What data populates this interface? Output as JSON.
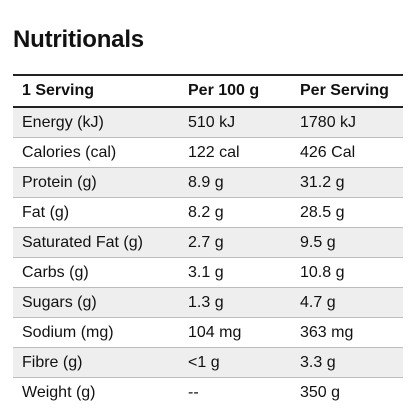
{
  "title": "Nutritionals",
  "table": {
    "headers": [
      "1 Serving",
      "Per 100 g",
      "Per Serving"
    ],
    "rows": [
      {
        "label": "Energy (kJ)",
        "per100g": "510 kJ",
        "perServing": "1780 kJ"
      },
      {
        "label": "Calories (cal)",
        "per100g": "122 cal",
        "perServing": "426 Cal"
      },
      {
        "label": "Protein (g)",
        "per100g": "8.9 g",
        "perServing": "31.2 g"
      },
      {
        "label": "Fat (g)",
        "per100g": "8.2 g",
        "perServing": "28.5 g"
      },
      {
        "label": "Saturated Fat (g)",
        "per100g": "2.7 g",
        "perServing": "9.5 g"
      },
      {
        "label": "Carbs (g)",
        "per100g": "3.1 g",
        "perServing": "10.8 g"
      },
      {
        "label": "Sugars (g)",
        "per100g": "1.3 g",
        "perServing": "4.7 g"
      },
      {
        "label": "Sodium (mg)",
        "per100g": "104 mg",
        "perServing": "363 mg"
      },
      {
        "label": "Fibre (g)",
        "per100g": "<1 g",
        "perServing": "3.3 g"
      },
      {
        "label": "Weight (g)",
        "per100g": "--",
        "perServing": "350 g"
      }
    ]
  }
}
